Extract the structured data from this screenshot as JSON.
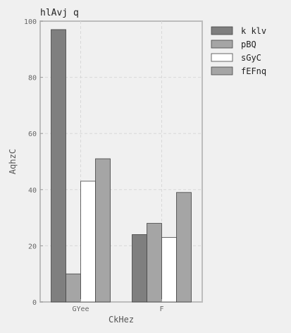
{
  "chart_data": {
    "type": "bar",
    "title": "hlAvj q",
    "xlabel": "CkHez",
    "ylabel": "AqhzC",
    "categories": [
      "GYee",
      "F"
    ],
    "series": [
      {
        "name": "k klv",
        "values": [
          97,
          24
        ],
        "color": "#7f7f7f"
      },
      {
        "name": "pBQ",
        "values": [
          10,
          28
        ],
        "color": "#a5a5a5"
      },
      {
        "name": "sGyC",
        "values": [
          43,
          23
        ],
        "color": "#ffffff"
      },
      {
        "name": "fEFnq",
        "values": [
          51,
          39
        ],
        "color": "#a5a5a5"
      }
    ],
    "ylim": [
      0,
      100
    ],
    "yticks": [
      0,
      20,
      40,
      60,
      80,
      100
    ],
    "grid": true,
    "legend_position": "top-right"
  }
}
